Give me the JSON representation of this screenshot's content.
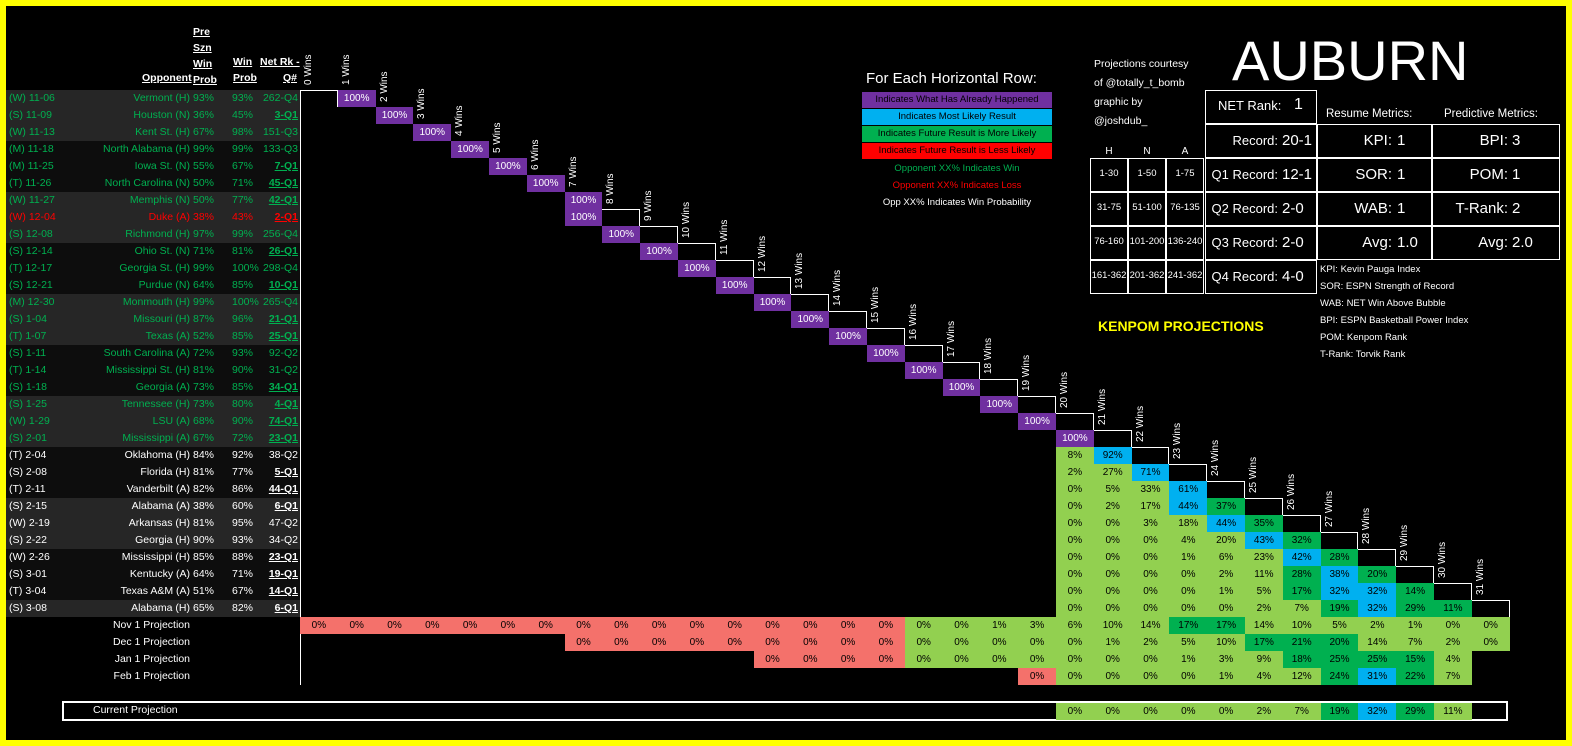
{
  "team": "AUBURN",
  "headers": {
    "pre": [
      "Pre",
      "Szn",
      "Win",
      "Prob"
    ],
    "opponent": "Opponent",
    "win_prob": [
      "Win",
      "Prob"
    ],
    "net": [
      "Net Rk -",
      "Q#"
    ]
  },
  "col_headers": [
    "0 Wins",
    "1 Wins",
    "2 Wins",
    "3 Wins",
    "4 Wins",
    "5 Wins",
    "6 Wins",
    "7 Wins",
    "8 Wins",
    "9 Wins",
    "10 Wins",
    "11 Wins",
    "12 Wins",
    "13 Wins",
    "14 Wins",
    "15 Wins",
    "16 Wins",
    "17 Wins",
    "18 Wins",
    "19 Wins",
    "20 Wins",
    "21 Wins",
    "22 Wins",
    "23 Wins",
    "24 Wins",
    "25 Wins",
    "26 Wins",
    "27 Wins",
    "28 Wins",
    "29 Wins",
    "30 Wins",
    "31 Wins"
  ],
  "games": [
    {
      "res": "(W) 11-06",
      "opp": "Vermont (H)",
      "pre": "93%",
      "win": "93%",
      "net": "262-Q4",
      "u": false,
      "s": "w"
    },
    {
      "res": "(S) 11-09",
      "opp": "Houston (N)",
      "pre": "36%",
      "win": "45%",
      "net": "3-Q1",
      "u": true,
      "s": "w"
    },
    {
      "res": "(W) 11-13",
      "opp": "Kent St. (H)",
      "pre": "67%",
      "win": "98%",
      "net": "151-Q3",
      "u": false,
      "s": "w"
    },
    {
      "res": "(M) 11-18",
      "opp": "North Alabama (H)",
      "pre": "99%",
      "win": "99%",
      "net": "133-Q3",
      "u": false,
      "s": "w"
    },
    {
      "res": "(M) 11-25",
      "opp": "Iowa St. (N)",
      "pre": "55%",
      "win": "67%",
      "net": "7-Q1",
      "u": true,
      "s": "w"
    },
    {
      "res": "(T) 11-26",
      "opp": "North Carolina (N)",
      "pre": "50%",
      "win": "71%",
      "net": "45-Q1",
      "u": true,
      "s": "w"
    },
    {
      "res": "(W) 11-27",
      "opp": "Memphis (N)",
      "pre": "50%",
      "win": "77%",
      "net": "42-Q1",
      "u": true,
      "s": "w"
    },
    {
      "res": "(W) 12-04",
      "opp": "Duke (A)",
      "pre": "38%",
      "win": "43%",
      "net": "2-Q1",
      "u": true,
      "s": "l"
    },
    {
      "res": "(S) 12-08",
      "opp": "Richmond (H)",
      "pre": "97%",
      "win": "99%",
      "net": "256-Q4",
      "u": false,
      "s": "w"
    },
    {
      "res": "(S) 12-14",
      "opp": "Ohio St. (N)",
      "pre": "71%",
      "win": "81%",
      "net": "26-Q1",
      "u": true,
      "s": "w"
    },
    {
      "res": "(T) 12-17",
      "opp": "Georgia St. (H)",
      "pre": "99%",
      "win": "100%",
      "net": "298-Q4",
      "u": false,
      "s": "w"
    },
    {
      "res": "(S) 12-21",
      "opp": "Purdue (N)",
      "pre": "64%",
      "win": "85%",
      "net": "10-Q1",
      "u": true,
      "s": "w"
    },
    {
      "res": "(M) 12-30",
      "opp": "Monmouth (H)",
      "pre": "99%",
      "win": "100%",
      "net": "265-Q4",
      "u": false,
      "s": "w"
    },
    {
      "res": "(S) 1-04",
      "opp": "Missouri (H)",
      "pre": "87%",
      "win": "96%",
      "net": "21-Q1",
      "u": true,
      "s": "w"
    },
    {
      "res": "(T) 1-07",
      "opp": "Texas (A)",
      "pre": "52%",
      "win": "85%",
      "net": "25-Q1",
      "u": true,
      "s": "w"
    },
    {
      "res": "(S) 1-11",
      "opp": "South Carolina (A)",
      "pre": "72%",
      "win": "93%",
      "net": "92-Q2",
      "u": false,
      "s": "w"
    },
    {
      "res": "(T) 1-14",
      "opp": "Mississippi St. (H)",
      "pre": "81%",
      "win": "90%",
      "net": "31-Q2",
      "u": false,
      "s": "w"
    },
    {
      "res": "(S) 1-18",
      "opp": "Georgia (A)",
      "pre": "73%",
      "win": "85%",
      "net": "34-Q1",
      "u": true,
      "s": "w"
    },
    {
      "res": "(S) 1-25",
      "opp": "Tennessee (H)",
      "pre": "73%",
      "win": "80%",
      "net": "4-Q1",
      "u": true,
      "s": "w"
    },
    {
      "res": "(W) 1-29",
      "opp": "LSU (A)",
      "pre": "68%",
      "win": "90%",
      "net": "74-Q1",
      "u": true,
      "s": "w"
    },
    {
      "res": "(S) 2-01",
      "opp": "Mississippi (A)",
      "pre": "67%",
      "win": "72%",
      "net": "23-Q1",
      "u": true,
      "s": "w"
    },
    {
      "res": "(T) 2-04",
      "opp": "Oklahoma (H)",
      "pre": "84%",
      "win": "92%",
      "net": "38-Q2",
      "u": false,
      "s": "f"
    },
    {
      "res": "(S) 2-08",
      "opp": "Florida (H)",
      "pre": "81%",
      "win": "77%",
      "net": "5-Q1",
      "u": true,
      "s": "f"
    },
    {
      "res": "(T) 2-11",
      "opp": "Vanderbilt (A)",
      "pre": "82%",
      "win": "86%",
      "net": "44-Q1",
      "u": true,
      "s": "f"
    },
    {
      "res": "(S) 2-15",
      "opp": "Alabama (A)",
      "pre": "38%",
      "win": "60%",
      "net": "6-Q1",
      "u": true,
      "s": "f"
    },
    {
      "res": "(W) 2-19",
      "opp": "Arkansas (H)",
      "pre": "81%",
      "win": "95%",
      "net": "47-Q2",
      "u": false,
      "s": "f"
    },
    {
      "res": "(S) 2-22",
      "opp": "Georgia (H)",
      "pre": "90%",
      "win": "93%",
      "net": "34-Q2",
      "u": false,
      "s": "f"
    },
    {
      "res": "(W) 2-26",
      "opp": "Mississippi (H)",
      "pre": "85%",
      "win": "88%",
      "net": "23-Q1",
      "u": true,
      "s": "f"
    },
    {
      "res": "(S) 3-01",
      "opp": "Kentucky (A)",
      "pre": "64%",
      "win": "71%",
      "net": "19-Q1",
      "u": true,
      "s": "f"
    },
    {
      "res": "(T) 3-04",
      "opp": "Texas A&M (A)",
      "pre": "51%",
      "win": "67%",
      "net": "14-Q1",
      "u": true,
      "s": "f"
    },
    {
      "res": "(S) 3-08",
      "opp": "Alabama (H)",
      "pre": "65%",
      "win": "82%",
      "net": "6-Q1",
      "u": true,
      "s": "f"
    }
  ],
  "future_rows": [
    {
      "start": 20,
      "vals": [
        "8%",
        "92%"
      ],
      "c": [
        "g",
        "b"
      ]
    },
    {
      "start": 20,
      "vals": [
        "2%",
        "27%",
        "71%"
      ],
      "c": [
        "g",
        "g",
        "b"
      ]
    },
    {
      "start": 20,
      "vals": [
        "0%",
        "5%",
        "33%",
        "61%"
      ],
      "c": [
        "g",
        "g",
        "g",
        "b"
      ]
    },
    {
      "start": 20,
      "vals": [
        "0%",
        "2%",
        "17%",
        "44%",
        "37%"
      ],
      "c": [
        "g",
        "g",
        "g",
        "b",
        "d"
      ]
    },
    {
      "start": 20,
      "vals": [
        "0%",
        "0%",
        "3%",
        "18%",
        "44%",
        "35%"
      ],
      "c": [
        "g",
        "g",
        "g",
        "g",
        "b",
        "d"
      ]
    },
    {
      "start": 20,
      "vals": [
        "0%",
        "0%",
        "0%",
        "4%",
        "20%",
        "43%",
        "32%"
      ],
      "c": [
        "g",
        "g",
        "g",
        "g",
        "g",
        "b",
        "d"
      ]
    },
    {
      "start": 20,
      "vals": [
        "0%",
        "0%",
        "0%",
        "1%",
        "6%",
        "23%",
        "42%",
        "28%"
      ],
      "c": [
        "g",
        "g",
        "g",
        "g",
        "g",
        "g",
        "b",
        "d"
      ]
    },
    {
      "start": 20,
      "vals": [
        "0%",
        "0%",
        "0%",
        "0%",
        "2%",
        "11%",
        "28%",
        "38%",
        "20%"
      ],
      "c": [
        "g",
        "g",
        "g",
        "g",
        "g",
        "g",
        "d",
        "b",
        "d"
      ]
    },
    {
      "start": 20,
      "vals": [
        "0%",
        "0%",
        "0%",
        "0%",
        "1%",
        "5%",
        "17%",
        "32%",
        "32%",
        "14%"
      ],
      "c": [
        "g",
        "g",
        "g",
        "g",
        "g",
        "g",
        "d",
        "b",
        "b",
        "d"
      ]
    },
    {
      "start": 20,
      "vals": [
        "0%",
        "0%",
        "0%",
        "0%",
        "0%",
        "2%",
        "7%",
        "19%",
        "32%",
        "29%",
        "11%"
      ],
      "c": [
        "g",
        "g",
        "g",
        "g",
        "g",
        "g",
        "g",
        "d",
        "b",
        "d",
        "d"
      ]
    }
  ],
  "projections": [
    {
      "label": "Nov 1 Projection",
      "start": 0,
      "vals": [
        "0%",
        "0%",
        "0%",
        "0%",
        "0%",
        "0%",
        "0%",
        "0%",
        "0%",
        "0%",
        "0%",
        "0%",
        "0%",
        "0%",
        "0%",
        "0%",
        "0%",
        "0%",
        "1%",
        "3%",
        "6%",
        "10%",
        "14%",
        "17%",
        "17%",
        "14%",
        "10%",
        "5%",
        "2%",
        "1%",
        "0%",
        "0%"
      ]
    },
    {
      "label": "Dec 1 Projection",
      "start": 7,
      "vals": [
        "0%",
        "0%",
        "0%",
        "0%",
        "0%",
        "0%",
        "0%",
        "0%",
        "0%",
        "0%",
        "0%",
        "0%",
        "0%",
        "0%",
        "1%",
        "2%",
        "5%",
        "10%",
        "17%",
        "21%",
        "20%",
        "14%",
        "7%",
        "2%",
        "0%"
      ]
    },
    {
      "label": "Jan 1 Projection",
      "start": 12,
      "vals": [
        "0%",
        "0%",
        "0%",
        "0%",
        "0%",
        "0%",
        "0%",
        "0%",
        "0%",
        "0%",
        "0%",
        "1%",
        "3%",
        "9%",
        "18%",
        "25%",
        "25%",
        "15%",
        "4%"
      ]
    },
    {
      "label": "Feb 1 Projection",
      "start": 19,
      "vals": [
        "0%",
        "0%",
        "0%",
        "0%",
        "0%",
        "1%",
        "4%",
        "12%",
        "24%",
        "31%",
        "22%",
        "7%"
      ]
    }
  ],
  "current": {
    "label": "Current Projection",
    "start": 20,
    "vals": [
      "0%",
      "0%",
      "0%",
      "0%",
      "0%",
      "2%",
      "7%",
      "19%",
      "32%",
      "29%",
      "11%"
    ]
  },
  "legend": {
    "title": "For Each Horizontal Row:",
    "items": [
      "Indicates What Has Already Happened",
      "Indicates Most Likely Result",
      "Indicates Future Result is More Likely",
      "Indicates Future Result is Less Likely"
    ],
    "win_note": "Opponent XX% Indicates Win",
    "loss_note": "Opponent XX% Indicates Loss",
    "opp_note": "Opp XX% Indicates Win Probability"
  },
  "credits": {
    "line1": "Projections courtesy",
    "line2": "of @totally_t_bomb",
    "line3": "graphic by",
    "line4": "@joshdub_"
  },
  "metrics": {
    "net_rank_label": "NET Rank:",
    "net_rank": "1",
    "record_label": "Record:",
    "record": "20-1",
    "q1_label": "Q1 Record:",
    "q1": "12-1",
    "q2_label": "Q2 Record:",
    "q2": "2-0",
    "q3_label": "Q3 Record:",
    "q3": "2-0",
    "q4_label": "Q4 Record:",
    "q4": "4-0",
    "resume_title": "Resume Metrics:",
    "predictive_title": "Predictive Metrics:",
    "kpi_label": "KPI:",
    "kpi": "1",
    "sor_label": "SOR:",
    "sor": "1",
    "wab_label": "WAB:",
    "wab": "1",
    "avg_label": "Avg:",
    "avg_resume": "1.0",
    "bpi_label": "BPI:",
    "bpi": "3",
    "pom_label": "POM:",
    "pom": "1",
    "trank_label": "T-Rank:",
    "trank": "2",
    "avg_pred": "2.0"
  },
  "quad_table": {
    "cols": [
      "H",
      "N",
      "A"
    ],
    "rows": [
      [
        "1-30",
        "1-50",
        "1-75"
      ],
      [
        "31-75",
        "51-100",
        "76-135"
      ],
      [
        "76-160",
        "101-200",
        "136-240"
      ],
      [
        "161-362",
        "201-362",
        "241-362"
      ]
    ]
  },
  "glossary": [
    "KPI: Kevin Pauga Index",
    "SOR: ESPN Strength of Record",
    "WAB: NET Win Above Bubble",
    "BPI: ESPN Basketball Power Index",
    "POM: Kenpom Rank",
    "T-Rank: Torvik Rank"
  ],
  "kenpom": "KENPOM PROJECTIONS",
  "colors": {
    "purple": "#7030a0",
    "blue": "#00b0f0",
    "green": "#00b050",
    "lightgreen": "#92d050",
    "red": "#ff0000",
    "pink": "#f4716b",
    "win": "#00b050",
    "loss": "#ff0000"
  }
}
